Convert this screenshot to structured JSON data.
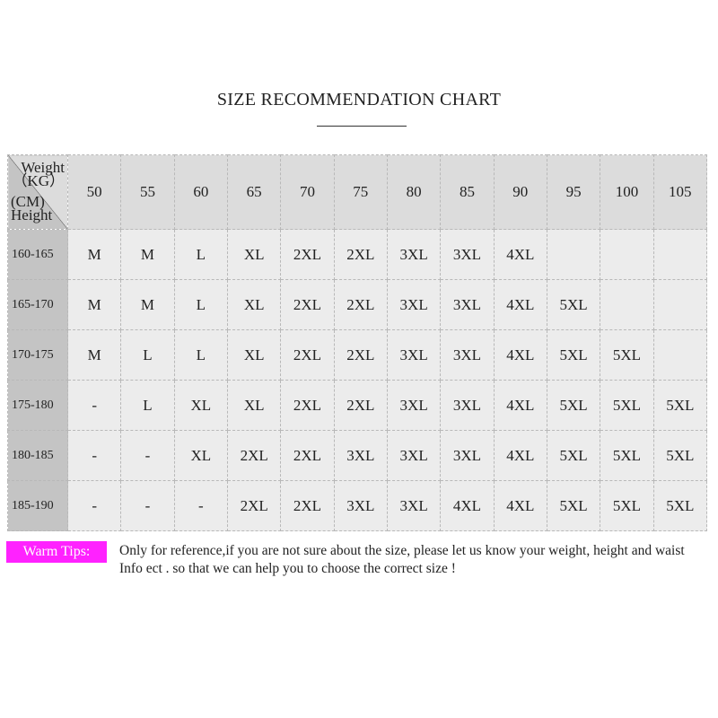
{
  "title": "SIZE RECOMMENDATION  CHART",
  "corner": {
    "weight": "Weight",
    "kg": "（KG）",
    "cm": "(CM)",
    "height": "Height"
  },
  "weights": [
    "50",
    "55",
    "60",
    "65",
    "70",
    "75",
    "80",
    "85",
    "90",
    "95",
    "100",
    "105"
  ],
  "rows": [
    {
      "height": "160-165",
      "sizes": [
        "M",
        "M",
        "L",
        "XL",
        "2XL",
        "2XL",
        "3XL",
        "3XL",
        "4XL",
        "",
        "",
        ""
      ]
    },
    {
      "height": "165-170",
      "sizes": [
        "M",
        "M",
        "L",
        "XL",
        "2XL",
        "2XL",
        "3XL",
        "3XL",
        "4XL",
        "5XL",
        "",
        ""
      ]
    },
    {
      "height": "170-175",
      "sizes": [
        "M",
        "L",
        "L",
        "XL",
        "2XL",
        "2XL",
        "3XL",
        "3XL",
        "4XL",
        "5XL",
        "5XL",
        ""
      ]
    },
    {
      "height": "175-180",
      "sizes": [
        "-",
        "L",
        "XL",
        "XL",
        "2XL",
        "2XL",
        "3XL",
        "3XL",
        "4XL",
        "5XL",
        "5XL",
        "5XL"
      ]
    },
    {
      "height": "180-185",
      "sizes": [
        "-",
        "-",
        "XL",
        "2XL",
        "2XL",
        "3XL",
        "3XL",
        "3XL",
        "4XL",
        "5XL",
        "5XL",
        "5XL"
      ]
    },
    {
      "height": "185-190",
      "sizes": [
        "-",
        "-",
        "-",
        "2XL",
        "2XL",
        "3XL",
        "3XL",
        "4XL",
        "4XL",
        "5XL",
        "5XL",
        "5XL"
      ]
    }
  ],
  "tips": {
    "label": "Warm Tips:",
    "text": "Only for reference,if you are not sure about the size, please let us know your weight, height and waist Info ect . so that we can help you to choose the correct size !",
    "color": "#ff22ff"
  }
}
